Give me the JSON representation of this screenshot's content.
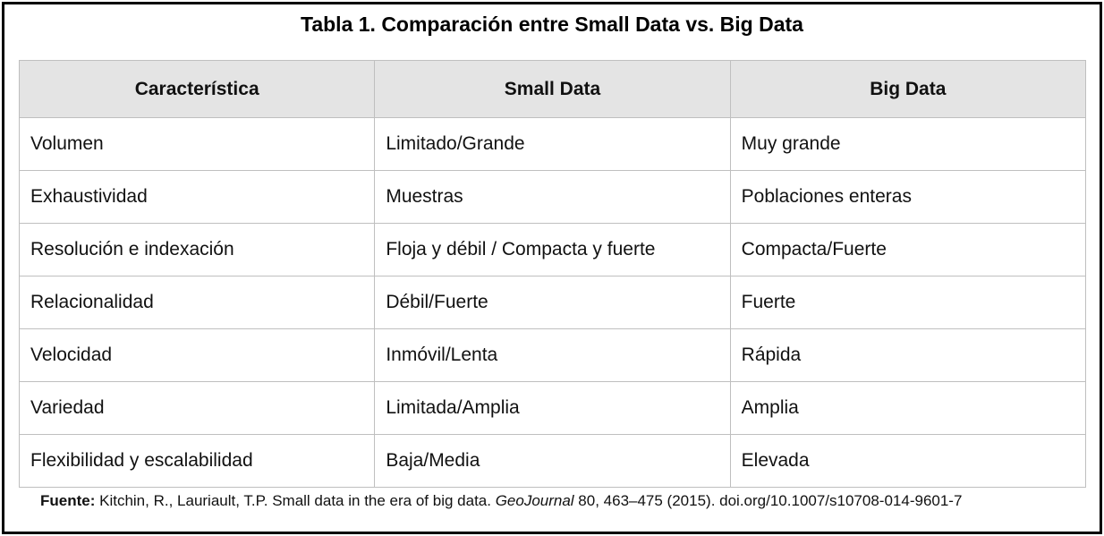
{
  "title": "Tabla 1. Comparación entre Small Data vs. Big Data",
  "table": {
    "headers": [
      "Característica",
      "Small Data",
      "Big Data"
    ],
    "rows": [
      [
        "Volumen",
        "Limitado/Grande",
        "Muy grande"
      ],
      [
        "Exhaustividad",
        "Muestras",
        "Poblaciones enteras"
      ],
      [
        "Resolución e indexación",
        "Floja y débil / Compacta y fuerte",
        "Compacta/Fuerte"
      ],
      [
        "Relacionalidad",
        "Débil/Fuerte",
        "Fuerte"
      ],
      [
        "Velocidad",
        "Inmóvil/Lenta",
        "Rápida"
      ],
      [
        "Variedad",
        "Limitada/Amplia",
        "Amplia"
      ],
      [
        "Flexibilidad y escalabilidad",
        "Baja/Media",
        "Elevada"
      ]
    ]
  },
  "source": {
    "label": "Fuente:",
    "text_before": " Kitchin, R., Lauriault, T.P. Small data in the era of big data. ",
    "journal": "GeoJournal",
    "text_after": " 80, 463–475 (2015). doi.org/10.1007/s10708-014-9601-7"
  }
}
